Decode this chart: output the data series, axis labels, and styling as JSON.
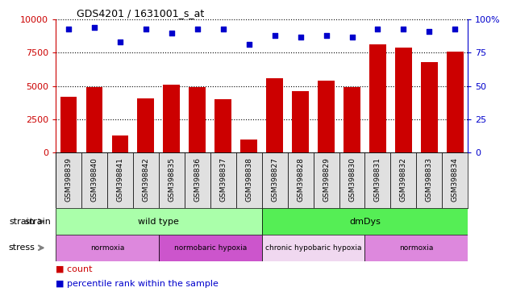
{
  "title": "GDS4201 / 1631001_s_at",
  "samples": [
    "GSM398839",
    "GSM398840",
    "GSM398841",
    "GSM398842",
    "GSM398835",
    "GSM398836",
    "GSM398837",
    "GSM398838",
    "GSM398827",
    "GSM398828",
    "GSM398829",
    "GSM398830",
    "GSM398831",
    "GSM398832",
    "GSM398833",
    "GSM398834"
  ],
  "counts": [
    4200,
    4900,
    1300,
    4100,
    5100,
    4900,
    4000,
    1000,
    5600,
    4600,
    5400,
    4900,
    8100,
    7900,
    6800,
    7600
  ],
  "percentile_ranks": [
    93,
    94,
    83,
    93,
    90,
    93,
    93,
    81,
    88,
    87,
    88,
    87,
    93,
    93,
    91,
    93
  ],
  "bar_color": "#cc0000",
  "dot_color": "#0000cc",
  "ylim_left": [
    0,
    10000
  ],
  "ylim_right": [
    0,
    100
  ],
  "yticks_left": [
    0,
    2500,
    5000,
    7500,
    10000
  ],
  "yticks_right": [
    0,
    25,
    50,
    75,
    100
  ],
  "strain_groups": [
    {
      "label": "wild type",
      "start": 0,
      "end": 8,
      "color": "#aaffaa"
    },
    {
      "label": "dmDys",
      "start": 8,
      "end": 16,
      "color": "#55ee55"
    }
  ],
  "stress_groups": [
    {
      "label": "normoxia",
      "start": 0,
      "end": 4,
      "color": "#dd88dd"
    },
    {
      "label": "normobaric hypoxia",
      "start": 4,
      "end": 8,
      "color": "#cc55cc"
    },
    {
      "label": "chronic hypobaric hypoxia",
      "start": 8,
      "end": 12,
      "color": "#f0d8f0"
    },
    {
      "label": "normoxia",
      "start": 12,
      "end": 16,
      "color": "#dd88dd"
    }
  ],
  "xlabel_color": "#cc0000",
  "right_axis_color": "#0000cc",
  "grid_color": "#000000",
  "background_color": "#ffffff",
  "tick_label_size": 6.5,
  "bar_width": 0.65,
  "dot_size": 18
}
